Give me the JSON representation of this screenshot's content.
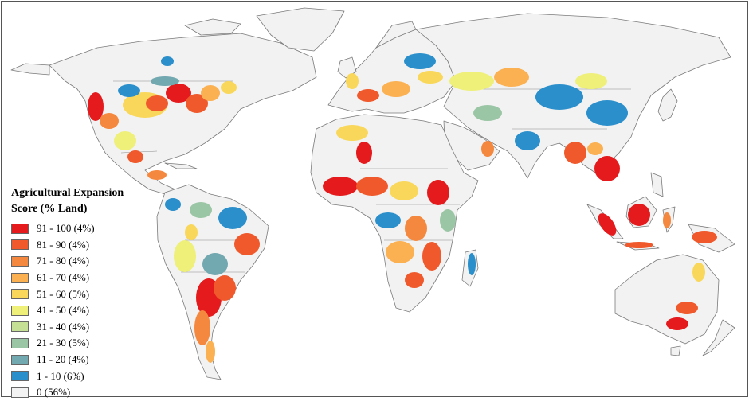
{
  "legend": {
    "title_line1": "Agricultural Expansion",
    "title_line2": "Score (% Land)",
    "classes": [
      {
        "label": "91 - 100 (4%)",
        "color": "#e41a1c"
      },
      {
        "label": "81 - 90 (4%)",
        "color": "#f0592b"
      },
      {
        "label": "71 - 80 (4%)",
        "color": "#f5883f"
      },
      {
        "label": "61 - 70 (4%)",
        "color": "#fbb052"
      },
      {
        "label": "51 - 60 (5%)",
        "color": "#f9d75a"
      },
      {
        "label": "41 - 50 (4%)",
        "color": "#eef07a"
      },
      {
        "label": "31 - 40 (4%)",
        "color": "#c5df94"
      },
      {
        "label": "21 - 30 (5%)",
        "color": "#9bc6a5"
      },
      {
        "label": "11 - 20 (4%)",
        "color": "#72a8b0"
      },
      {
        "label": "1 - 10 (6%)",
        "color": "#2b8fcb"
      },
      {
        "label": "0 (56%)",
        "color": "#f2f2f2"
      }
    ]
  },
  "map": {
    "land_color": "#f2f2f2",
    "border_color": "#7a7a7a"
  }
}
